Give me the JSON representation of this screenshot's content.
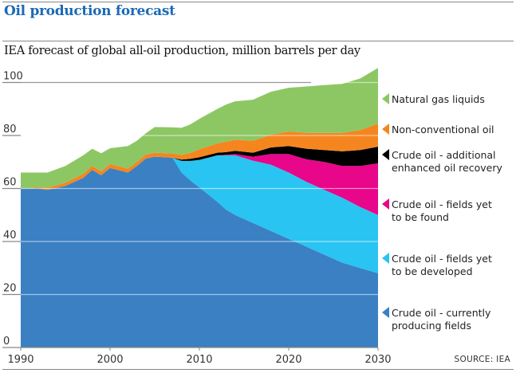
{
  "header": {
    "title": "Oil production forecast",
    "subtitle": "IEA forecast of global all-oil production, million barrels per day",
    "source": "SOURCE: IEA"
  },
  "chart_data": {
    "type": "area",
    "stacked": true,
    "title": "Oil production forecast",
    "subtitle": "IEA forecast of global all-oil production, million barrels per day",
    "xlabel": "",
    "ylabel": "million barrels per day",
    "xlim": [
      1990,
      2030
    ],
    "ylim": [
      0,
      105
    ],
    "x_ticks": [
      1990,
      2000,
      2010,
      2020,
      2030
    ],
    "y_ticks": [
      0,
      20,
      40,
      60,
      80,
      100
    ],
    "grid": true,
    "legend_placement": "right",
    "x": [
      1990,
      1992,
      1993,
      1995,
      1997,
      1998,
      1999,
      2000,
      2002,
      2003,
      2004,
      2005,
      2007,
      2008,
      2009,
      2010,
      2012,
      2013,
      2014,
      2016,
      2018,
      2020,
      2022,
      2024,
      2026,
      2028,
      2030
    ],
    "series": [
      {
        "name": "Crude oil - currently producing fields",
        "color": "#3a80c3",
        "values": [
          60,
          60,
          59.5,
          61,
          64,
          67,
          65,
          67.7,
          66,
          68.5,
          71.3,
          72,
          71.6,
          66,
          63,
          60.4,
          55,
          52,
          50,
          47,
          44,
          41,
          38,
          35,
          32,
          30,
          28
        ]
      },
      {
        "name": "Crude oil - fields yet to be developed",
        "color": "#29c4f2",
        "values": [
          0,
          0,
          0,
          0,
          0,
          0,
          0,
          0,
          0,
          0,
          0,
          0,
          0,
          4.4,
          7.4,
          10.4,
          17.5,
          20.5,
          22.5,
          23.5,
          25,
          25,
          24.5,
          24.5,
          24.5,
          23,
          22
        ]
      },
      {
        "name": "Crude oil - fields yet to be found",
        "color": "#e8068a",
        "values": [
          0,
          0,
          0,
          0,
          0,
          0,
          0,
          0,
          0,
          0,
          0,
          0,
          0,
          0,
          0,
          0,
          0,
          0.2,
          0.5,
          1.5,
          4,
          7,
          8.5,
          10.5,
          12,
          15.5,
          19.5
        ]
      },
      {
        "name": "Crude oil - additional enhanced oil recovery",
        "color": "#000000",
        "values": [
          0,
          0,
          0,
          0,
          0,
          0,
          0,
          0,
          0,
          0,
          0,
          0,
          0,
          0.5,
          0.8,
          1,
          1,
          1,
          1.2,
          1.5,
          2.5,
          3,
          4,
          4.5,
          5.5,
          6,
          6.3
        ]
      },
      {
        "name": "Non-conventional oil",
        "color": "#f5861f",
        "values": [
          0,
          0.5,
          0.8,
          1.2,
          1.5,
          1.5,
          1.5,
          1.5,
          1.5,
          1.5,
          1.5,
          1.5,
          1.6,
          1.8,
          2.2,
          3,
          3.5,
          4,
          4.2,
          4.5,
          4.8,
          5.5,
          6,
          6.5,
          7,
          7.5,
          8.7
        ]
      },
      {
        "name": "Natural gas liquids",
        "color": "#8dc764",
        "values": [
          6,
          5.5,
          5.7,
          6.3,
          7,
          6.5,
          6.8,
          6,
          8.5,
          8,
          8,
          9.7,
          9.9,
          10.2,
          10.8,
          11.5,
          13,
          14,
          14.5,
          15.5,
          16.2,
          16.5,
          17.5,
          18,
          18.5,
          19.5,
          21
        ]
      }
    ],
    "source": "SOURCE: IEA"
  },
  "legend": [
    {
      "label_lines": [
        "Natural gas liquids"
      ],
      "color": "#8dc764"
    },
    {
      "label_lines": [
        "Non-conventional oil"
      ],
      "color": "#f5861f"
    },
    {
      "label_lines": [
        "Crude oil - additional",
        "enhanced oil recovery"
      ],
      "color": "#000000"
    },
    {
      "label_lines": [
        "Crude oil - fields yet",
        "to be found"
      ],
      "color": "#e8068a"
    },
    {
      "label_lines": [
        "Crude oil - fields yet",
        "to be developed"
      ],
      "color": "#29c4f2"
    },
    {
      "label_lines": [
        "Crude oil - currently",
        "producing fields"
      ],
      "color": "#3a80c3"
    }
  ]
}
